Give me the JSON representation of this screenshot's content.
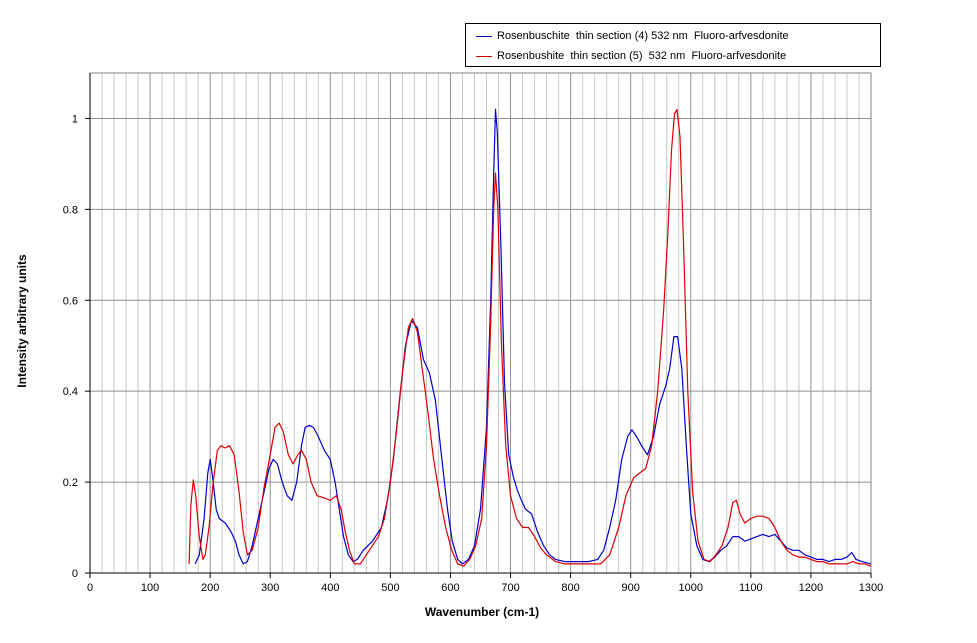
{
  "chart_data": {
    "type": "line",
    "title": "",
    "xlabel": "Wavenumber (cm-1)",
    "ylabel": "Intensity  arbitrary units",
    "xlim": [
      0,
      1300
    ],
    "ylim": [
      0,
      1.1
    ],
    "xticks": [
      0,
      100,
      200,
      300,
      400,
      500,
      600,
      700,
      800,
      900,
      1000,
      1100,
      1200,
      1300
    ],
    "yticks": [
      0,
      0.2,
      0.4,
      0.6,
      0.8,
      1
    ],
    "ytick_labels": [
      "0",
      "0.2",
      "0.4",
      "0.6",
      "0.8",
      "1"
    ],
    "grid": true,
    "legend_position": "top-right outside plot",
    "series": [
      {
        "name": "Rosenbuschite  thin section (4) 532 nm  Fluoro-arfvesdonite",
        "color": "#0000cc",
        "points": [
          [
            175,
            0.02
          ],
          [
            182,
            0.04
          ],
          [
            190,
            0.12
          ],
          [
            196,
            0.22
          ],
          [
            200,
            0.25
          ],
          [
            205,
            0.2
          ],
          [
            210,
            0.14
          ],
          [
            215,
            0.12
          ],
          [
            225,
            0.11
          ],
          [
            235,
            0.09
          ],
          [
            242,
            0.07
          ],
          [
            248,
            0.04
          ],
          [
            255,
            0.02
          ],
          [
            262,
            0.025
          ],
          [
            270,
            0.06
          ],
          [
            280,
            0.12
          ],
          [
            290,
            0.18
          ],
          [
            298,
            0.23
          ],
          [
            305,
            0.25
          ],
          [
            312,
            0.24
          ],
          [
            320,
            0.2
          ],
          [
            328,
            0.17
          ],
          [
            336,
            0.16
          ],
          [
            344,
            0.2
          ],
          [
            352,
            0.28
          ],
          [
            358,
            0.32
          ],
          [
            365,
            0.325
          ],
          [
            372,
            0.32
          ],
          [
            380,
            0.3
          ],
          [
            390,
            0.27
          ],
          [
            400,
            0.25
          ],
          [
            408,
            0.2
          ],
          [
            415,
            0.14
          ],
          [
            422,
            0.08
          ],
          [
            430,
            0.04
          ],
          [
            438,
            0.025
          ],
          [
            445,
            0.03
          ],
          [
            455,
            0.05
          ],
          [
            470,
            0.07
          ],
          [
            485,
            0.1
          ],
          [
            495,
            0.16
          ],
          [
            505,
            0.25
          ],
          [
            515,
            0.38
          ],
          [
            525,
            0.5
          ],
          [
            535,
            0.555
          ],
          [
            545,
            0.54
          ],
          [
            555,
            0.47
          ],
          [
            565,
            0.44
          ],
          [
            575,
            0.38
          ],
          [
            585,
            0.26
          ],
          [
            595,
            0.14
          ],
          [
            603,
            0.07
          ],
          [
            612,
            0.03
          ],
          [
            620,
            0.02
          ],
          [
            630,
            0.03
          ],
          [
            640,
            0.06
          ],
          [
            650,
            0.14
          ],
          [
            660,
            0.32
          ],
          [
            667,
            0.6
          ],
          [
            672,
            0.88
          ],
          [
            675,
            1.02
          ],
          [
            678,
            0.97
          ],
          [
            684,
            0.72
          ],
          [
            690,
            0.42
          ],
          [
            697,
            0.26
          ],
          [
            705,
            0.21
          ],
          [
            712,
            0.18
          ],
          [
            718,
            0.16
          ],
          [
            725,
            0.14
          ],
          [
            735,
            0.13
          ],
          [
            745,
            0.09
          ],
          [
            755,
            0.06
          ],
          [
            765,
            0.04
          ],
          [
            775,
            0.03
          ],
          [
            790,
            0.025
          ],
          [
            810,
            0.025
          ],
          [
            830,
            0.025
          ],
          [
            845,
            0.03
          ],
          [
            855,
            0.05
          ],
          [
            865,
            0.1
          ],
          [
            875,
            0.16
          ],
          [
            885,
            0.25
          ],
          [
            895,
            0.3
          ],
          [
            902,
            0.315
          ],
          [
            910,
            0.3
          ],
          [
            918,
            0.28
          ],
          [
            928,
            0.26
          ],
          [
            938,
            0.3
          ],
          [
            948,
            0.37
          ],
          [
            958,
            0.41
          ],
          [
            965,
            0.45
          ],
          [
            972,
            0.52
          ],
          [
            978,
            0.52
          ],
          [
            985,
            0.45
          ],
          [
            993,
            0.27
          ],
          [
            1000,
            0.13
          ],
          [
            1010,
            0.06
          ],
          [
            1020,
            0.03
          ],
          [
            1030,
            0.025
          ],
          [
            1040,
            0.035
          ],
          [
            1050,
            0.05
          ],
          [
            1060,
            0.06
          ],
          [
            1070,
            0.08
          ],
          [
            1080,
            0.08
          ],
          [
            1090,
            0.07
          ],
          [
            1100,
            0.075
          ],
          [
            1110,
            0.08
          ],
          [
            1120,
            0.085
          ],
          [
            1130,
            0.08
          ],
          [
            1140,
            0.085
          ],
          [
            1150,
            0.07
          ],
          [
            1160,
            0.055
          ],
          [
            1170,
            0.05
          ],
          [
            1180,
            0.05
          ],
          [
            1190,
            0.04
          ],
          [
            1200,
            0.035
          ],
          [
            1210,
            0.03
          ],
          [
            1220,
            0.03
          ],
          [
            1230,
            0.025
          ],
          [
            1240,
            0.03
          ],
          [
            1250,
            0.03
          ],
          [
            1260,
            0.035
          ],
          [
            1268,
            0.045
          ],
          [
            1275,
            0.03
          ],
          [
            1285,
            0.025
          ],
          [
            1300,
            0.02
          ]
        ]
      },
      {
        "name": "Rosenbushite  thin section (5)  532 nm  Fluoro-arfvesdonite",
        "color": "#dd0000",
        "points": [
          [
            165,
            0.02
          ],
          [
            168,
            0.15
          ],
          [
            172,
            0.205
          ],
          [
            176,
            0.17
          ],
          [
            182,
            0.08
          ],
          [
            188,
            0.03
          ],
          [
            192,
            0.04
          ],
          [
            198,
            0.1
          ],
          [
            205,
            0.2
          ],
          [
            212,
            0.27
          ],
          [
            218,
            0.28
          ],
          [
            225,
            0.275
          ],
          [
            232,
            0.28
          ],
          [
            240,
            0.26
          ],
          [
            248,
            0.18
          ],
          [
            255,
            0.09
          ],
          [
            262,
            0.04
          ],
          [
            270,
            0.05
          ],
          [
            280,
            0.1
          ],
          [
            290,
            0.19
          ],
          [
            300,
            0.26
          ],
          [
            308,
            0.32
          ],
          [
            315,
            0.33
          ],
          [
            322,
            0.31
          ],
          [
            330,
            0.26
          ],
          [
            338,
            0.24
          ],
          [
            346,
            0.26
          ],
          [
            352,
            0.27
          ],
          [
            360,
            0.25
          ],
          [
            368,
            0.2
          ],
          [
            378,
            0.17
          ],
          [
            390,
            0.165
          ],
          [
            400,
            0.16
          ],
          [
            410,
            0.17
          ],
          [
            418,
            0.14
          ],
          [
            425,
            0.09
          ],
          [
            432,
            0.05
          ],
          [
            440,
            0.02
          ],
          [
            450,
            0.02
          ],
          [
            460,
            0.04
          ],
          [
            470,
            0.06
          ],
          [
            480,
            0.08
          ],
          [
            490,
            0.12
          ],
          [
            500,
            0.2
          ],
          [
            510,
            0.31
          ],
          [
            520,
            0.44
          ],
          [
            530,
            0.54
          ],
          [
            537,
            0.56
          ],
          [
            545,
            0.53
          ],
          [
            553,
            0.45
          ],
          [
            562,
            0.36
          ],
          [
            572,
            0.25
          ],
          [
            582,
            0.17
          ],
          [
            592,
            0.1
          ],
          [
            602,
            0.05
          ],
          [
            612,
            0.02
          ],
          [
            622,
            0.015
          ],
          [
            632,
            0.03
          ],
          [
            642,
            0.06
          ],
          [
            652,
            0.12
          ],
          [
            660,
            0.28
          ],
          [
            667,
            0.55
          ],
          [
            672,
            0.8
          ],
          [
            675,
            0.88
          ],
          [
            679,
            0.8
          ],
          [
            685,
            0.5
          ],
          [
            692,
            0.28
          ],
          [
            700,
            0.17
          ],
          [
            710,
            0.12
          ],
          [
            720,
            0.1
          ],
          [
            730,
            0.1
          ],
          [
            740,
            0.08
          ],
          [
            750,
            0.055
          ],
          [
            760,
            0.04
          ],
          [
            775,
            0.025
          ],
          [
            790,
            0.02
          ],
          [
            810,
            0.02
          ],
          [
            830,
            0.02
          ],
          [
            850,
            0.02
          ],
          [
            865,
            0.04
          ],
          [
            880,
            0.1
          ],
          [
            892,
            0.17
          ],
          [
            905,
            0.21
          ],
          [
            915,
            0.22
          ],
          [
            925,
            0.23
          ],
          [
            935,
            0.28
          ],
          [
            945,
            0.4
          ],
          [
            955,
            0.58
          ],
          [
            962,
            0.75
          ],
          [
            968,
            0.93
          ],
          [
            973,
            1.01
          ],
          [
            977,
            1.02
          ],
          [
            982,
            0.96
          ],
          [
            988,
            0.72
          ],
          [
            995,
            0.4
          ],
          [
            1003,
            0.18
          ],
          [
            1012,
            0.07
          ],
          [
            1022,
            0.03
          ],
          [
            1032,
            0.025
          ],
          [
            1042,
            0.04
          ],
          [
            1052,
            0.06
          ],
          [
            1062,
            0.1
          ],
          [
            1070,
            0.155
          ],
          [
            1076,
            0.16
          ],
          [
            1082,
            0.13
          ],
          [
            1090,
            0.11
          ],
          [
            1100,
            0.12
          ],
          [
            1110,
            0.125
          ],
          [
            1120,
            0.125
          ],
          [
            1130,
            0.12
          ],
          [
            1140,
            0.1
          ],
          [
            1150,
            0.07
          ],
          [
            1160,
            0.05
          ],
          [
            1170,
            0.04
          ],
          [
            1180,
            0.035
          ],
          [
            1190,
            0.035
          ],
          [
            1200,
            0.03
          ],
          [
            1210,
            0.025
          ],
          [
            1220,
            0.025
          ],
          [
            1230,
            0.02
          ],
          [
            1240,
            0.02
          ],
          [
            1250,
            0.02
          ],
          [
            1260,
            0.02
          ],
          [
            1270,
            0.025
          ],
          [
            1280,
            0.02
          ],
          [
            1290,
            0.02
          ],
          [
            1300,
            0.015
          ]
        ]
      }
    ]
  }
}
